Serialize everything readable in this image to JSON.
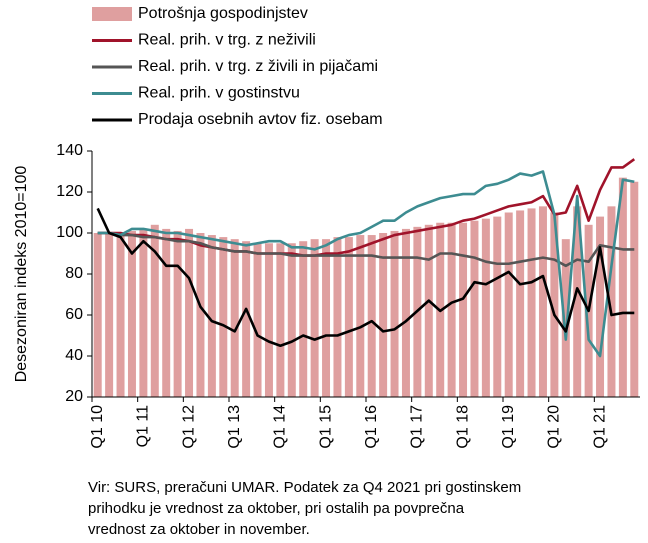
{
  "chart_data": {
    "type": "combo",
    "ylabel": "Desezoniran indeks 2010=100",
    "categories": [
      "Q1 10",
      null,
      null,
      null,
      "Q1 11",
      null,
      null,
      null,
      "Q1 12",
      null,
      null,
      null,
      "Q1 13",
      null,
      null,
      null,
      "Q1 14",
      null,
      null,
      null,
      "Q1 15",
      null,
      null,
      null,
      "Q1 16",
      null,
      null,
      null,
      "Q1 17",
      null,
      null,
      null,
      "Q1 18",
      null,
      null,
      null,
      "Q1 19",
      null,
      null,
      null,
      "Q1 20",
      null,
      null,
      null,
      "Q1 21",
      null,
      null,
      null
    ],
    "ylim": [
      20,
      140
    ],
    "yticks": [
      20,
      40,
      60,
      80,
      100,
      120,
      140
    ],
    "series": [
      {
        "name": "Potrošnja gospodinjstev",
        "type": "bar",
        "color": "#df9f9f",
        "values": [
          100,
          100,
          100,
          101,
          102,
          104,
          102,
          101,
          102,
          100,
          99,
          98,
          97,
          96,
          95,
          95,
          95,
          95,
          96,
          97,
          97,
          98,
          98,
          99,
          99,
          100,
          101,
          102,
          103,
          104,
          105,
          105,
          105,
          106,
          107,
          108,
          110,
          111,
          112,
          113,
          110,
          97,
          113,
          104,
          108,
          113,
          127,
          125
        ]
      },
      {
        "name": "Real. prih. v trg. z neživili",
        "type": "line",
        "color": "#a0132a",
        "values": [
          100,
          100,
          100,
          99,
          99,
          98,
          97,
          97,
          96,
          94,
          93,
          92,
          91,
          91,
          90,
          90,
          90,
          90,
          89,
          89,
          90,
          90,
          91,
          93,
          95,
          97,
          99,
          100,
          101,
          102,
          103,
          104,
          106,
          107,
          109,
          111,
          113,
          114,
          115,
          118,
          109,
          110,
          123,
          106,
          121,
          132,
          132,
          136
        ]
      },
      {
        "name": "Real. prih. v trg. z živili in pijačami",
        "type": "line",
        "color": "#555555",
        "values": [
          100,
          100,
          99,
          99,
          98,
          98,
          97,
          96,
          96,
          95,
          93,
          92,
          91,
          91,
          90,
          90,
          90,
          89,
          89,
          89,
          89,
          89,
          89,
          89,
          89,
          88,
          88,
          88,
          88,
          87,
          90,
          90,
          89,
          88,
          86,
          85,
          85,
          86,
          87,
          88,
          87,
          84,
          87,
          86,
          94,
          93,
          92,
          92
        ]
      },
      {
        "name": "Real. prih. v gostinstvu",
        "type": "line",
        "color": "#3d8c91",
        "values": [
          100,
          100,
          99,
          102,
          102,
          101,
          100,
          100,
          99,
          98,
          97,
          96,
          95,
          94,
          95,
          96,
          96,
          93,
          93,
          92,
          94,
          97,
          99,
          100,
          103,
          106,
          106,
          110,
          113,
          115,
          117,
          118,
          119,
          119,
          123,
          124,
          126,
          129,
          128,
          130,
          109,
          48,
          118,
          48,
          40,
          84,
          126,
          125
        ]
      },
      {
        "name": "Prodaja osebnih avtov fiz. osebam",
        "type": "line",
        "color": "#000000",
        "values": [
          112,
          100,
          98,
          90,
          96,
          91,
          84,
          84,
          78,
          64,
          57,
          55,
          52,
          63,
          50,
          47,
          45,
          47,
          50,
          48,
          50,
          50,
          52,
          54,
          57,
          52,
          53,
          57,
          62,
          67,
          62,
          66,
          68,
          76,
          75,
          78,
          81,
          75,
          76,
          79,
          60,
          52,
          73,
          62,
          93,
          60,
          61,
          61
        ]
      }
    ],
    "notes": [
      "Vir: SURS, preračuni UMAR. Podatek za Q4 2021 pri gostinskem",
      "prihodku je vrednost za oktober, pri ostalih pa povprečna",
      "vrednost za oktober in november."
    ]
  }
}
